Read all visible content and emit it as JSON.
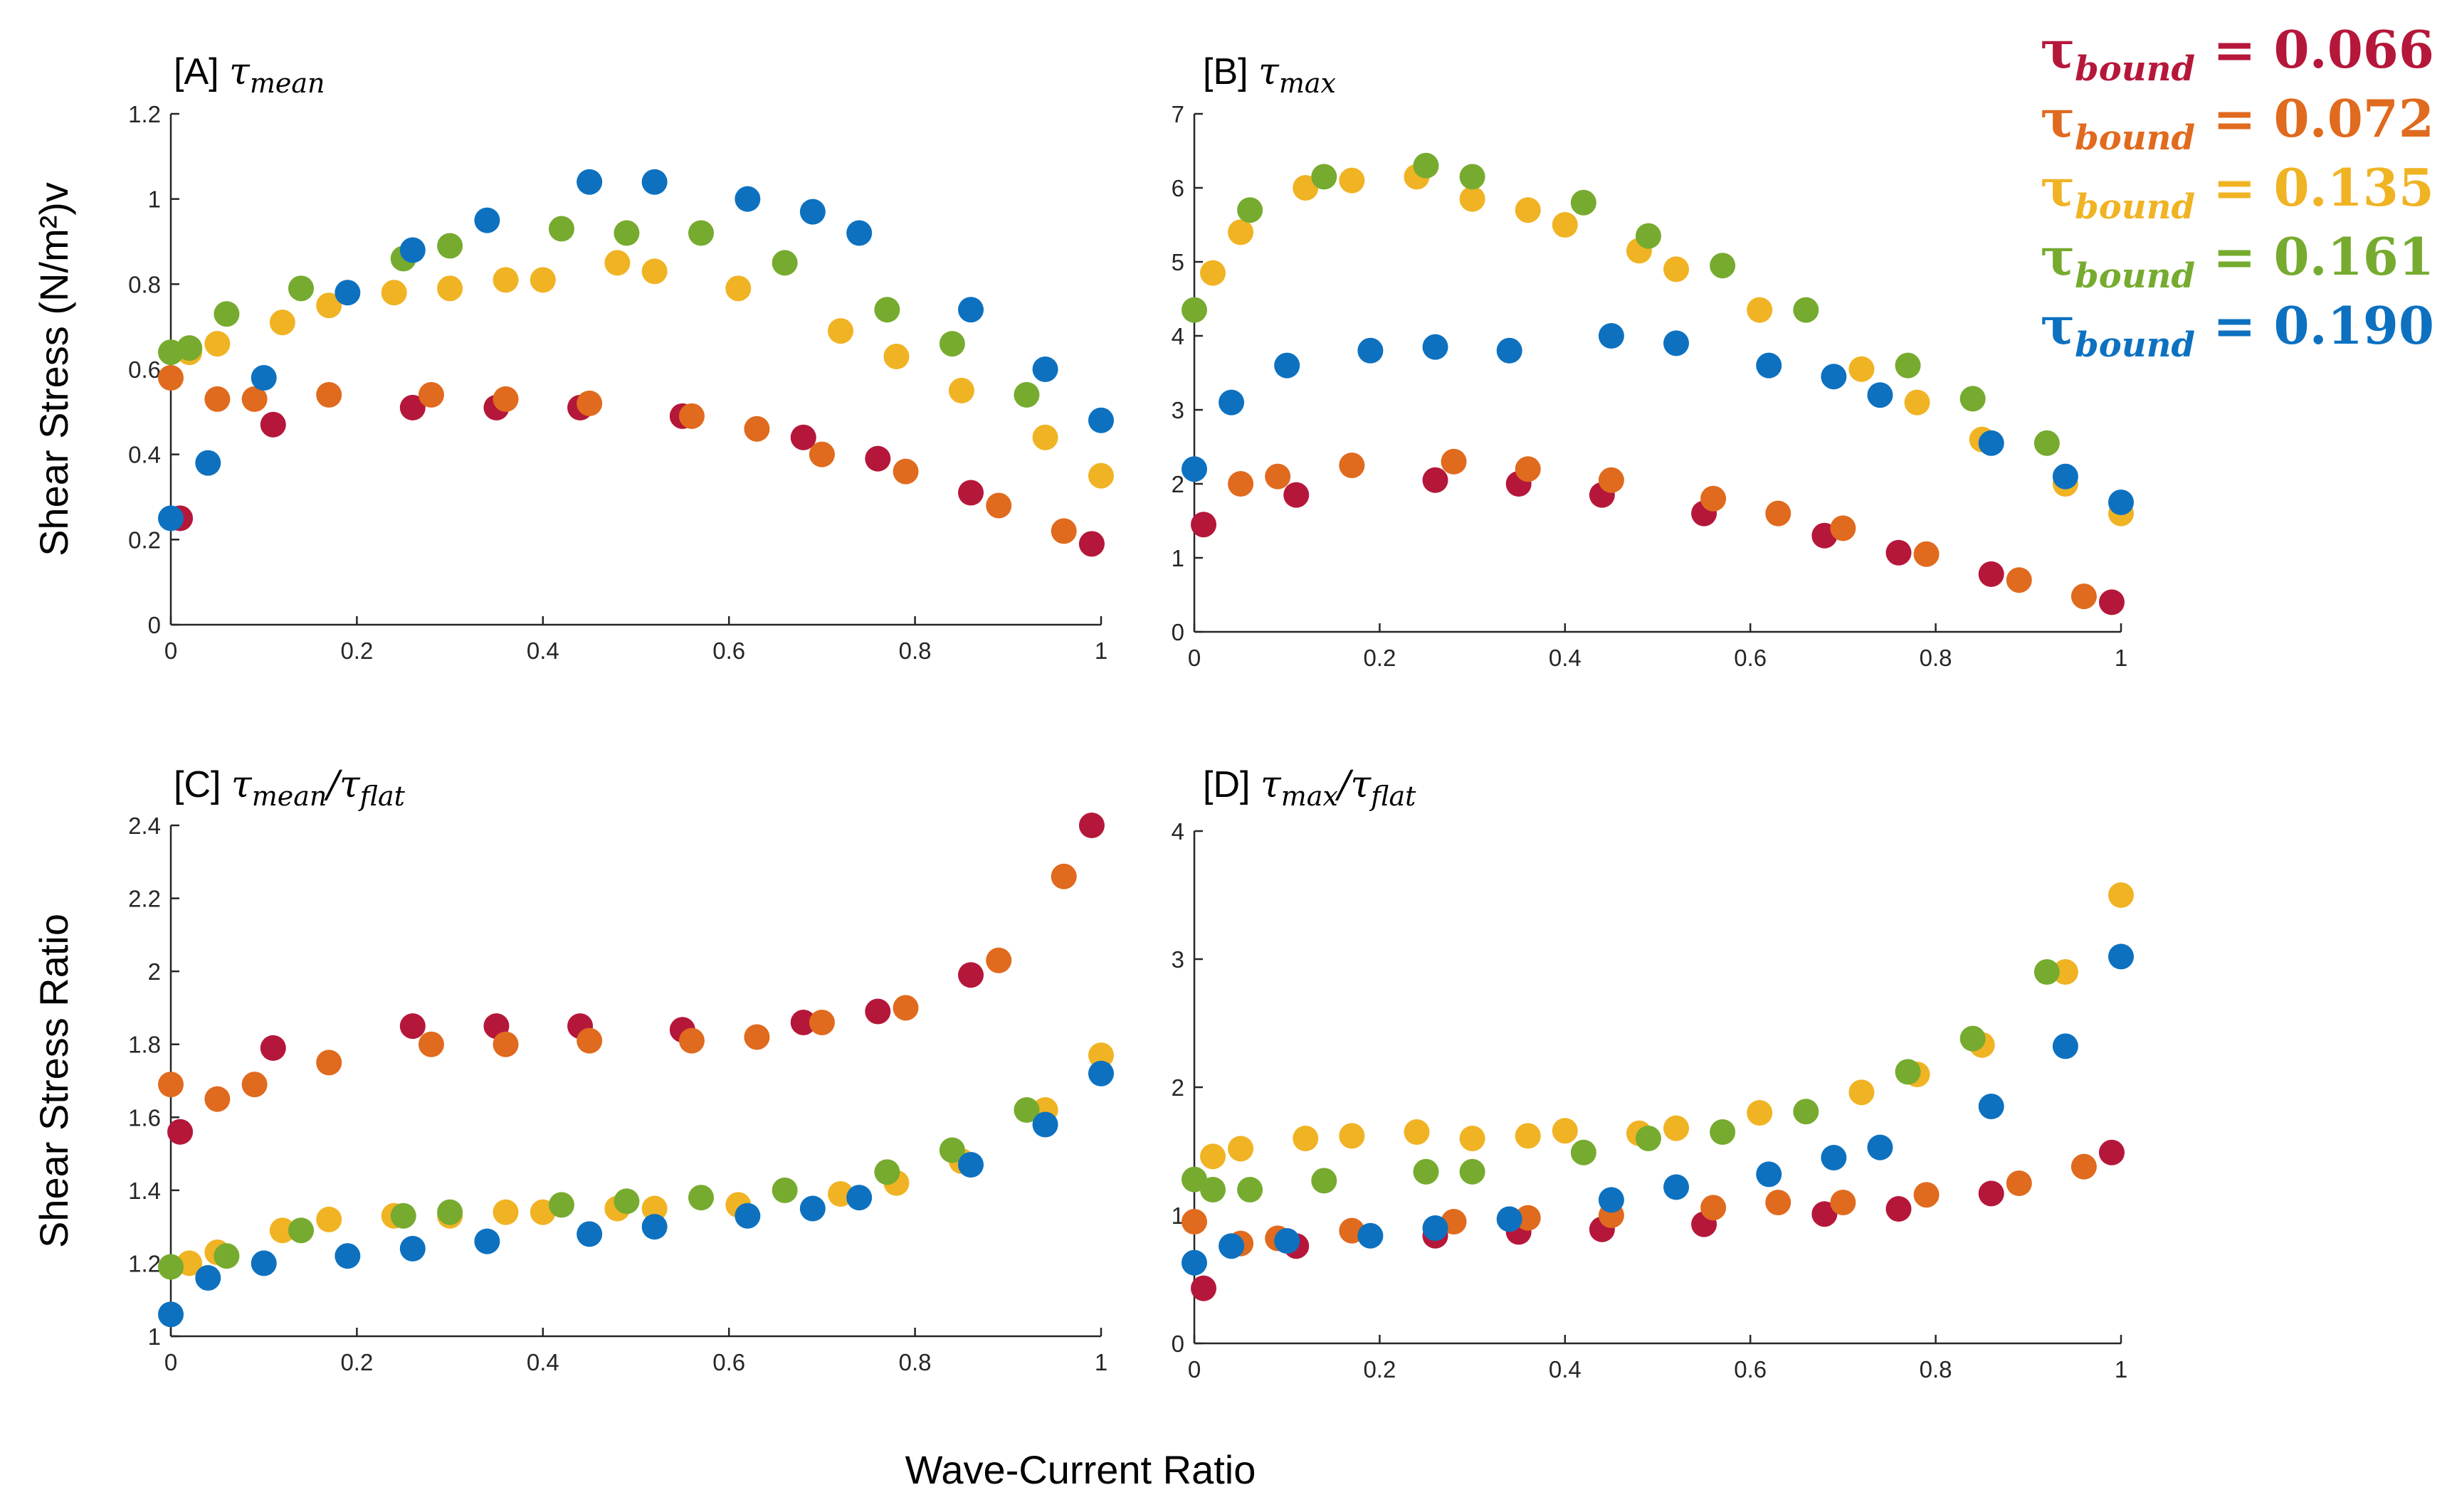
{
  "chart_data": [
    {
      "type": "scatter",
      "panel_id": "A",
      "title": "[A] τmean",
      "title_prefix": "[A]",
      "title_symbol": "τ",
      "title_subscript": "mean",
      "ylabel": "Shear Stress (N/m²)v",
      "xlim": [
        0,
        1
      ],
      "ylim": [
        0,
        1.2
      ],
      "xticks": [
        "0",
        "0.2",
        "0.4",
        "0.6",
        "0.8",
        "1"
      ],
      "yticks": [
        "0",
        "0.2",
        "0.4",
        "0.6",
        "0.8",
        "1",
        "1.2"
      ],
      "series": [
        {
          "name": "τbound = 0.066",
          "color": "#b5173a",
          "x": [
            0.01,
            0.11,
            0.26,
            0.35,
            0.44,
            0.55,
            0.68,
            0.76,
            0.86,
            0.99
          ],
          "y": [
            0.25,
            0.47,
            0.51,
            0.51,
            0.51,
            0.49,
            0.44,
            0.39,
            0.31,
            0.19
          ]
        },
        {
          "name": "τbound = 0.072",
          "color": "#e06a1e",
          "x": [
            0.0,
            0.05,
            0.09,
            0.17,
            0.28,
            0.36,
            0.45,
            0.56,
            0.63,
            0.7,
            0.79,
            0.89,
            0.96
          ],
          "y": [
            0.58,
            0.53,
            0.53,
            0.54,
            0.54,
            0.53,
            0.52,
            0.49,
            0.46,
            0.4,
            0.36,
            0.28,
            0.22
          ]
        },
        {
          "name": "τbound = 0.135",
          "color": "#f0b323",
          "x": [
            0.02,
            0.05,
            0.12,
            0.17,
            0.24,
            0.3,
            0.36,
            0.4,
            0.48,
            0.52,
            0.61,
            0.72,
            0.78,
            0.85,
            0.94,
            1.0
          ],
          "y": [
            0.64,
            0.66,
            0.71,
            0.75,
            0.78,
            0.79,
            0.81,
            0.81,
            0.85,
            0.83,
            0.79,
            0.69,
            0.63,
            0.55,
            0.44,
            0.35
          ]
        },
        {
          "name": "τbound = 0.161",
          "color": "#76ab2f",
          "x": [
            0.0,
            0.02,
            0.06,
            0.14,
            0.25,
            0.3,
            0.42,
            0.49,
            0.57,
            0.66,
            0.77,
            0.84,
            0.92
          ],
          "y": [
            0.64,
            0.65,
            0.73,
            0.79,
            0.86,
            0.89,
            0.93,
            0.92,
            0.92,
            0.85,
            0.74,
            0.66,
            0.54
          ]
        },
        {
          "name": "τbound = 0.190",
          "color": "#0d71c0",
          "x": [
            0.0,
            0.04,
            0.1,
            0.19,
            0.26,
            0.34,
            0.45,
            0.52,
            0.62,
            0.69,
            0.74,
            0.86,
            0.94,
            1.0
          ],
          "y": [
            0.25,
            0.38,
            0.58,
            0.78,
            0.88,
            0.95,
            1.04,
            1.04,
            1.0,
            0.97,
            0.92,
            0.74,
            0.6,
            0.48
          ]
        }
      ]
    },
    {
      "type": "scatter",
      "panel_id": "B",
      "title": "[B] τmax",
      "title_prefix": "[B]",
      "title_symbol": "τ",
      "title_subscript": "max",
      "ylabel": "",
      "xlim": [
        0,
        1
      ],
      "ylim": [
        0,
        7
      ],
      "xticks": [
        "0",
        "0.2",
        "0.4",
        "0.6",
        "0.8",
        "1"
      ],
      "yticks": [
        "0",
        "1",
        "2",
        "3",
        "4",
        "5",
        "6",
        "7"
      ],
      "series": [
        {
          "name": "τbound = 0.066",
          "color": "#b5173a",
          "x": [
            0.01,
            0.11,
            0.26,
            0.35,
            0.44,
            0.55,
            0.68,
            0.76,
            0.86,
            0.99
          ],
          "y": [
            1.45,
            1.85,
            2.05,
            2.0,
            1.85,
            1.6,
            1.3,
            1.07,
            0.78,
            0.4
          ]
        },
        {
          "name": "τbound = 0.072",
          "color": "#e06a1e",
          "x": [
            0.05,
            0.09,
            0.17,
            0.28,
            0.36,
            0.45,
            0.56,
            0.63,
            0.7,
            0.79,
            0.89,
            0.96
          ],
          "y": [
            2.0,
            2.1,
            2.25,
            2.3,
            2.2,
            2.05,
            1.8,
            1.6,
            1.4,
            1.05,
            0.7,
            0.48
          ]
        },
        {
          "name": "τbound = 0.135",
          "color": "#f0b323",
          "x": [
            0.02,
            0.05,
            0.12,
            0.17,
            0.24,
            0.3,
            0.36,
            0.4,
            0.48,
            0.52,
            0.61,
            0.72,
            0.78,
            0.85,
            0.94,
            1.0
          ],
          "y": [
            4.85,
            5.4,
            6.0,
            6.1,
            6.15,
            5.85,
            5.7,
            5.5,
            5.15,
            4.9,
            4.35,
            3.55,
            3.1,
            2.6,
            2.0,
            1.6
          ]
        },
        {
          "name": "τbound = 0.161",
          "color": "#76ab2f",
          "x": [
            0.0,
            0.06,
            0.14,
            0.25,
            0.3,
            0.42,
            0.49,
            0.57,
            0.66,
            0.77,
            0.84,
            0.92
          ],
          "y": [
            4.35,
            5.7,
            6.15,
            6.3,
            6.15,
            5.8,
            5.35,
            4.95,
            4.35,
            3.6,
            3.15,
            2.55
          ]
        },
        {
          "name": "τbound = 0.190",
          "color": "#0d71c0",
          "x": [
            0.0,
            0.04,
            0.1,
            0.19,
            0.26,
            0.34,
            0.45,
            0.52,
            0.62,
            0.69,
            0.74,
            0.86,
            0.94,
            1.0
          ],
          "y": [
            2.2,
            3.1,
            3.6,
            3.8,
            3.85,
            3.8,
            4.0,
            3.9,
            3.6,
            3.45,
            3.2,
            2.55,
            2.1,
            1.75
          ]
        }
      ]
    },
    {
      "type": "scatter",
      "panel_id": "C",
      "title": "[C] τmean/τflat",
      "title_prefix": "[C]",
      "title_symbol": "τ",
      "title_subscript": "mean",
      "title_symbol2": "τ",
      "title_subscript2": "flat",
      "ylabel": "Shear Stress Ratio",
      "xlim": [
        0,
        1
      ],
      "ylim": [
        1,
        2.4
      ],
      "xticks": [
        "0",
        "0.2",
        "0.4",
        "0.6",
        "0.8",
        "1"
      ],
      "yticks": [
        "1",
        "1.2",
        "1.4",
        "1.6",
        "1.8",
        "2",
        "2.2",
        "2.4"
      ],
      "series": [
        {
          "name": "τbound = 0.066",
          "color": "#b5173a",
          "x": [
            0.01,
            0.11,
            0.26,
            0.35,
            0.44,
            0.55,
            0.68,
            0.76,
            0.86,
            0.99
          ],
          "y": [
            1.56,
            1.79,
            1.85,
            1.85,
            1.85,
            1.84,
            1.86,
            1.89,
            1.99,
            2.4
          ]
        },
        {
          "name": "τbound = 0.072",
          "color": "#e06a1e",
          "x": [
            0.0,
            0.05,
            0.09,
            0.17,
            0.28,
            0.36,
            0.45,
            0.56,
            0.63,
            0.7,
            0.79,
            0.89,
            0.96
          ],
          "y": [
            1.69,
            1.65,
            1.69,
            1.75,
            1.8,
            1.8,
            1.81,
            1.81,
            1.82,
            1.86,
            1.9,
            2.03,
            2.26
          ]
        },
        {
          "name": "τbound = 0.135",
          "color": "#f0b323",
          "x": [
            0.02,
            0.05,
            0.12,
            0.17,
            0.24,
            0.3,
            0.36,
            0.4,
            0.48,
            0.52,
            0.61,
            0.72,
            0.78,
            0.85,
            0.94,
            1.0
          ],
          "y": [
            1.2,
            1.23,
            1.29,
            1.32,
            1.33,
            1.33,
            1.34,
            1.34,
            1.35,
            1.35,
            1.36,
            1.39,
            1.42,
            1.48,
            1.62,
            1.77
          ]
        },
        {
          "name": "τbound = 0.161",
          "color": "#76ab2f",
          "x": [
            0.0,
            0.06,
            0.14,
            0.25,
            0.3,
            0.42,
            0.49,
            0.57,
            0.66,
            0.77,
            0.84,
            0.92
          ],
          "y": [
            1.19,
            1.22,
            1.29,
            1.33,
            1.34,
            1.36,
            1.37,
            1.38,
            1.4,
            1.45,
            1.51,
            1.62
          ]
        },
        {
          "name": "τbound = 0.190",
          "color": "#0d71c0",
          "x": [
            0.0,
            0.04,
            0.1,
            0.19,
            0.26,
            0.34,
            0.45,
            0.52,
            0.62,
            0.69,
            0.74,
            0.86,
            0.94,
            1.0
          ],
          "y": [
            1.06,
            1.16,
            1.2,
            1.22,
            1.24,
            1.26,
            1.28,
            1.3,
            1.33,
            1.35,
            1.38,
            1.47,
            1.58,
            1.72
          ]
        }
      ]
    },
    {
      "type": "scatter",
      "panel_id": "D",
      "title": "[D] τmax/τflat",
      "title_prefix": "[D]",
      "title_symbol": "τ",
      "title_subscript": "max",
      "title_symbol2": "τ",
      "title_subscript2": "flat",
      "ylabel": "",
      "xlim": [
        0,
        1
      ],
      "ylim": [
        0,
        4
      ],
      "xticks": [
        "0",
        "0.2",
        "0.4",
        "0.6",
        "0.8",
        "1"
      ],
      "yticks": [
        "0",
        "1",
        "2",
        "3",
        "4"
      ],
      "series": [
        {
          "name": "τbound = 0.066",
          "color": "#b5173a",
          "x": [
            0.01,
            0.11,
            0.26,
            0.35,
            0.44,
            0.55,
            0.68,
            0.76,
            0.86,
            0.99
          ],
          "y": [
            0.43,
            0.76,
            0.84,
            0.87,
            0.89,
            0.93,
            1.01,
            1.05,
            1.17,
            1.49
          ]
        },
        {
          "name": "τbound = 0.072",
          "color": "#e06a1e",
          "x": [
            0.0,
            0.05,
            0.09,
            0.17,
            0.28,
            0.36,
            0.45,
            0.56,
            0.63,
            0.7,
            0.79,
            0.89,
            0.96
          ],
          "y": [
            0.95,
            0.78,
            0.82,
            0.88,
            0.95,
            0.98,
            1.0,
            1.06,
            1.1,
            1.1,
            1.16,
            1.25,
            1.38
          ]
        },
        {
          "name": "τbound = 0.135",
          "color": "#f0b323",
          "x": [
            0.02,
            0.05,
            0.12,
            0.17,
            0.24,
            0.3,
            0.36,
            0.4,
            0.48,
            0.52,
            0.61,
            0.72,
            0.78,
            0.85,
            0.94,
            1.0
          ],
          "y": [
            1.46,
            1.52,
            1.6,
            1.62,
            1.65,
            1.6,
            1.62,
            1.66,
            1.64,
            1.68,
            1.8,
            1.96,
            2.1,
            2.33,
            2.9,
            3.5
          ]
        },
        {
          "name": "τbound = 0.161",
          "color": "#76ab2f",
          "x": [
            0.0,
            0.02,
            0.06,
            0.14,
            0.25,
            0.3,
            0.42,
            0.49,
            0.57,
            0.66,
            0.77,
            0.84,
            0.92
          ],
          "y": [
            1.28,
            1.2,
            1.2,
            1.27,
            1.34,
            1.34,
            1.49,
            1.6,
            1.65,
            1.81,
            2.12,
            2.38,
            2.9
          ]
        },
        {
          "name": "τbound = 0.190",
          "color": "#0d71c0",
          "x": [
            0.0,
            0.04,
            0.1,
            0.19,
            0.26,
            0.34,
            0.45,
            0.52,
            0.62,
            0.69,
            0.74,
            0.86,
            0.94,
            1.0
          ],
          "y": [
            0.63,
            0.76,
            0.8,
            0.84,
            0.9,
            0.97,
            1.12,
            1.22,
            1.32,
            1.45,
            1.53,
            1.85,
            2.32,
            3.02
          ]
        }
      ]
    }
  ],
  "shared_xlabel": "Wave-Current Ratio",
  "legend": [
    {
      "symbol": "τ",
      "subscript": "bound",
      "eq": " = ",
      "value": "0.066",
      "color": "#b5173a"
    },
    {
      "symbol": "τ",
      "subscript": "bound",
      "eq": " = ",
      "value": "0.072",
      "color": "#e06a1e"
    },
    {
      "symbol": "τ",
      "subscript": "bound",
      "eq": " = ",
      "value": "0.135",
      "color": "#f0b323"
    },
    {
      "symbol": "τ",
      "subscript": "bound",
      "eq": " = ",
      "value": "0.161",
      "color": "#76ab2f"
    },
    {
      "symbol": "τ",
      "subscript": "bound",
      "eq": " = ",
      "value": "0.190",
      "color": "#0d71c0"
    }
  ]
}
